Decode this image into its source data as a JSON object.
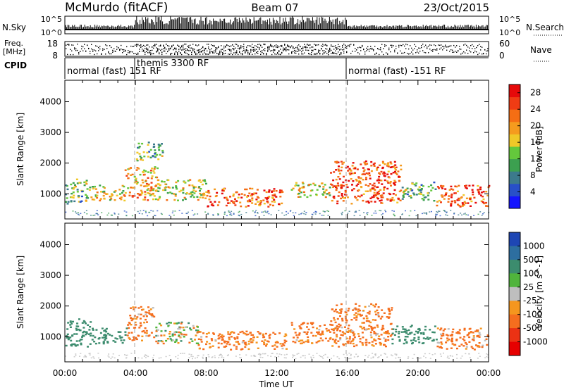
{
  "header": {
    "station": "McMurdo (fitACF)",
    "beam": "Beam 07",
    "date": "23/Oct/2015"
  },
  "aux_labels": {
    "nsky": "N.Sky",
    "nsky_ticks": [
      "10^5",
      "10^0"
    ],
    "nsearch": "N.Search",
    "nsearch_ticks": [
      "10^5",
      "10^0"
    ],
    "freq_line1": "Freq.",
    "freq_line2": "[MHz]",
    "freq_ticks": [
      "18",
      "8"
    ],
    "nave": "Nave",
    "nave_ticks": [
      "60",
      "0"
    ],
    "cpid": "CPID",
    "cpid_modes": [
      "normal (fast) 151 RF",
      "themis 3300 RF",
      "normal (fast) -151 RF"
    ]
  },
  "chart_data": [
    {
      "type": "heatmap",
      "title": "",
      "xlabel": "Time UT",
      "ylabel": "Slant Range [km]",
      "x_ticks": [
        "00:00",
        "04:00",
        "08:00",
        "12:00",
        "16:00",
        "20:00",
        "00:00"
      ],
      "xlim_hours": [
        0,
        24
      ],
      "y_ticks": [
        1000,
        2000,
        3000,
        4000
      ],
      "ylim": [
        180,
        4700
      ],
      "grid": false,
      "colorbar": {
        "label": "Power [dB]",
        "ticks": [
          4,
          8,
          12,
          16,
          20,
          24,
          28
        ],
        "range": [
          0,
          30
        ],
        "colors": [
          "#1414ff",
          "#2850c8",
          "#3c7a8c",
          "#3ca050",
          "#64c83c",
          "#f0c828",
          "#f59b1e",
          "#f56e14",
          "#f03c14",
          "#e60a0a"
        ]
      },
      "echo_regions": [
        {
          "t_start": 0.0,
          "t_end": 1.3,
          "range_low": 700,
          "range_high": 1500,
          "level": 12
        },
        {
          "t_start": 1.3,
          "t_end": 3.3,
          "range_low": 800,
          "range_high": 1300,
          "level": 16
        },
        {
          "t_start": 3.3,
          "t_end": 5.2,
          "range_low": 800,
          "range_high": 1900,
          "level": 20
        },
        {
          "t_start": 4.0,
          "t_end": 5.5,
          "range_low": 2100,
          "range_high": 2700,
          "level": 12
        },
        {
          "t_start": 5.2,
          "t_end": 8.0,
          "range_low": 800,
          "range_high": 1500,
          "level": 16
        },
        {
          "t_start": 8.0,
          "t_end": 12.3,
          "range_low": 600,
          "range_high": 1200,
          "level": 24
        },
        {
          "t_start": 12.8,
          "t_end": 15.0,
          "range_low": 900,
          "range_high": 1400,
          "level": 16
        },
        {
          "t_start": 15.0,
          "t_end": 19.0,
          "range_low": 700,
          "range_high": 2100,
          "level": 24
        },
        {
          "t_start": 19.0,
          "t_end": 21.0,
          "range_low": 800,
          "range_high": 1400,
          "level": 12
        },
        {
          "t_start": 21.0,
          "t_end": 24.0,
          "range_low": 600,
          "range_high": 1300,
          "level": 24
        }
      ]
    },
    {
      "type": "heatmap",
      "title": "",
      "xlabel": "Time UT",
      "ylabel": "Slant Range [km]",
      "x_ticks": [
        "00:00",
        "04:00",
        "08:00",
        "12:00",
        "16:00",
        "20:00",
        "00:00"
      ],
      "xlim_hours": [
        0,
        24
      ],
      "y_ticks": [
        1000,
        2000,
        3000,
        4000
      ],
      "ylim": [
        180,
        4700
      ],
      "grid": false,
      "colorbar": {
        "label": "Velocity [m s^-1]",
        "tick_labels": [
          "1000",
          "500",
          "100",
          "25",
          "-25",
          "-100",
          "-500",
          "-1000"
        ],
        "colors": [
          "#1e46b4",
          "#2d6ea0",
          "#3c8c6e",
          "#50b43c",
          "#bebebe",
          "#f5961e",
          "#f56e1e",
          "#eb3214",
          "#e60000"
        ]
      },
      "echo_regions": [
        {
          "t_start": 0.0,
          "t_end": 1.5,
          "range_low": 700,
          "range_high": 1600,
          "velocity": 300
        },
        {
          "t_start": 1.5,
          "t_end": 3.5,
          "range_low": 800,
          "range_high": 1300,
          "velocity": 300
        },
        {
          "t_start": 3.5,
          "t_end": 5.0,
          "range_low": 900,
          "range_high": 2000,
          "velocity": -200
        },
        {
          "t_start": 5.0,
          "t_end": 7.5,
          "range_low": 800,
          "range_high": 1500,
          "velocity": 0
        },
        {
          "t_start": 7.5,
          "t_end": 12.5,
          "range_low": 600,
          "range_high": 1200,
          "velocity": -200
        },
        {
          "t_start": 12.8,
          "t_end": 15.0,
          "range_low": 800,
          "range_high": 1500,
          "velocity": -200
        },
        {
          "t_start": 15.0,
          "t_end": 18.5,
          "range_low": 700,
          "range_high": 2100,
          "velocity": -200
        },
        {
          "t_start": 18.5,
          "t_end": 21.0,
          "range_low": 800,
          "range_high": 1400,
          "velocity": 300
        },
        {
          "t_start": 21.0,
          "t_end": 24.0,
          "range_low": 600,
          "range_high": 1300,
          "velocity": -200
        }
      ]
    }
  ]
}
